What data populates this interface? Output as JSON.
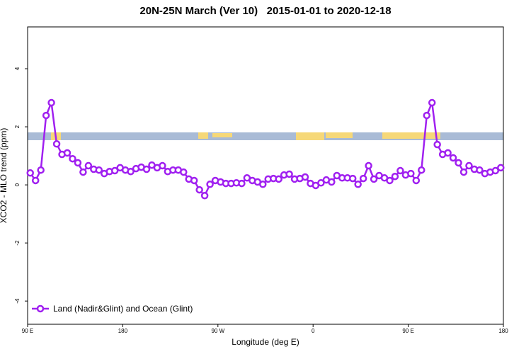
{
  "chart_data": {
    "type": "line",
    "title": "20N-25N March (Ver 10)   2015-01-01 to 2020-12-18",
    "xlabel": "Longitude (deg E)",
    "ylabel": "XCO2 - MLO trend (ppm)",
    "xlim": [
      90,
      540
    ],
    "xticks": [
      {
        "value": 90,
        "label": "90 E"
      },
      180,
      {
        "value": 270,
        "label": "90 W"
      },
      {
        "value": 360,
        "label": "0"
      },
      {
        "value": 450,
        "label": "90 E"
      },
      {
        "value": 540,
        "label": "180"
      }
    ],
    "ylim": [
      -4.8,
      5.44
    ],
    "yticks": [
      -4,
      -2,
      0,
      2,
      4
    ],
    "legend": "lower left",
    "series": [
      {
        "name": "Land (Nadir&Glint) and Ocean (Glint)",
        "color": "#a020f0",
        "x": [
          92.5,
          97.5,
          102.5,
          107.5,
          112.5,
          117.5,
          122.5,
          127.5,
          132.5,
          137.5,
          142.5,
          147.5,
          152.5,
          157.5,
          162.5,
          167.5,
          172.5,
          177.5,
          182.5,
          187.5,
          192.5,
          197.5,
          202.5,
          207.5,
          212.5,
          217.5,
          222.5,
          227.5,
          232.5,
          237.5,
          242.5,
          247.5,
          252.5,
          257.5,
          262.5,
          267.5,
          272.5,
          277.5,
          282.5,
          287.5,
          292.5,
          297.5,
          302.5,
          307.5,
          312.5,
          317.5,
          322.5,
          327.5,
          332.5,
          337.5,
          342.5,
          347.5,
          352.5,
          357.5,
          362.5,
          367.5,
          372.5,
          377.5,
          382.5,
          387.5,
          392.5,
          397.5,
          402.5,
          407.5,
          412.5,
          417.5,
          422.5,
          427.5,
          432.5,
          437.5,
          442.5,
          447.5,
          452.5,
          457.5,
          462.5,
          467.5,
          472.5,
          477.5,
          482.5,
          487.5,
          492.5,
          497.5,
          502.5,
          507.5,
          512.5,
          517.5,
          522.5,
          527.5,
          532.5,
          537.5
        ],
        "values": [
          0.41,
          0.15,
          0.51,
          2.39,
          2.83,
          1.41,
          1.05,
          1.1,
          0.9,
          0.76,
          0.44,
          0.66,
          0.54,
          0.51,
          0.39,
          0.46,
          0.49,
          0.59,
          0.51,
          0.46,
          0.56,
          0.61,
          0.54,
          0.68,
          0.59,
          0.66,
          0.46,
          0.51,
          0.51,
          0.44,
          0.2,
          0.15,
          -0.17,
          -0.37,
          0.02,
          0.15,
          0.1,
          0.05,
          0.05,
          0.07,
          0.05,
          0.24,
          0.15,
          0.1,
          0.02,
          0.2,
          0.22,
          0.2,
          0.34,
          0.37,
          0.2,
          0.22,
          0.27,
          0.05,
          -0.02,
          0.07,
          0.17,
          0.1,
          0.32,
          0.24,
          0.24,
          0.22,
          0.02,
          0.22,
          0.66,
          0.2,
          0.32,
          0.24,
          0.15,
          0.29,
          0.49,
          0.34,
          0.39,
          0.15,
          0.51,
          2.39,
          2.83,
          1.39,
          1.05,
          1.1,
          0.93,
          0.76,
          0.44,
          0.66,
          0.54,
          0.51,
          0.39,
          0.44,
          0.49,
          0.59
        ]
      }
    ]
  }
}
